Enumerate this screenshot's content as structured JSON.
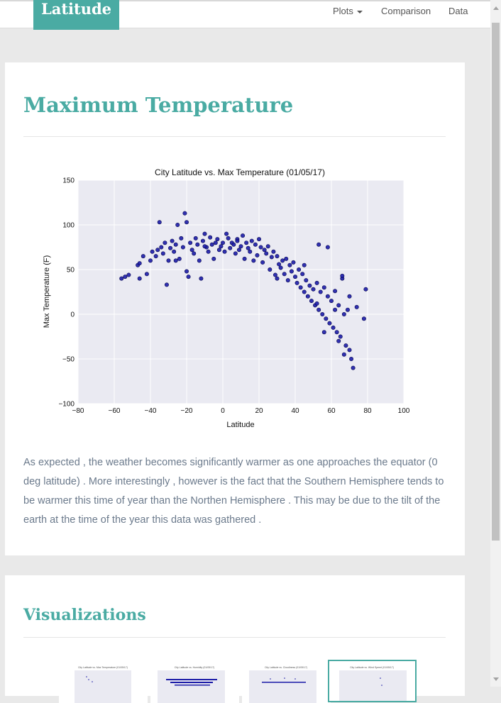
{
  "nav": {
    "brand": "Latitude",
    "items": [
      {
        "label": "Plots",
        "has_caret": true
      },
      {
        "label": "Comparison",
        "has_caret": false
      },
      {
        "label": "Data",
        "has_caret": false
      }
    ]
  },
  "main": {
    "title": "Maximum Temperature",
    "description": "As expected , the weather becomes significantly warmer as one approaches the equator (0 deg latitude) . More interestingly , however is the fact that the Southern Hemisphere tends to be warmer this time of year than the Northen Hemisphere . This may be due to the tilt of the earth at the time of the year this data was gathered ."
  },
  "visualizations": {
    "title": "Visualizations",
    "thumbnails": [
      {
        "name": "max-temperature",
        "active": false
      },
      {
        "name": "humidity",
        "active": false
      },
      {
        "name": "cloudiness",
        "active": false
      },
      {
        "name": "wind-speed",
        "active": true
      }
    ]
  },
  "colors": {
    "accent": "#4aaba3",
    "point": "#1c1ca8",
    "plot_bg": "#eaeaf2"
  },
  "chart_data": {
    "type": "scatter",
    "title": "City Latitude vs. Max Temperature (01/05/17)",
    "xlabel": "Latitude",
    "ylabel": "Max Temperature (F)",
    "xlim": [
      -80,
      100
    ],
    "ylim": [
      -100,
      150
    ],
    "xticks": [
      -80,
      -60,
      -40,
      -20,
      0,
      20,
      40,
      60,
      80,
      100
    ],
    "yticks": [
      -100,
      -50,
      0,
      50,
      100,
      150
    ],
    "grid": true,
    "points": [
      [
        -56,
        40
      ],
      [
        -54,
        42
      ],
      [
        -52,
        44
      ],
      [
        -47,
        55
      ],
      [
        -46,
        57
      ],
      [
        -46,
        40
      ],
      [
        -44,
        65
      ],
      [
        -42,
        45
      ],
      [
        -40,
        60
      ],
      [
        -39,
        70
      ],
      [
        -37,
        65
      ],
      [
        -36,
        72
      ],
      [
        -35,
        103
      ],
      [
        -34,
        75
      ],
      [
        -33,
        68
      ],
      [
        -32,
        80
      ],
      [
        -31,
        33
      ],
      [
        -30,
        60
      ],
      [
        -29,
        74
      ],
      [
        -28,
        82
      ],
      [
        -27,
        70
      ],
      [
        -26,
        78
      ],
      [
        -25,
        100
      ],
      [
        -24,
        62
      ],
      [
        -23,
        85
      ],
      [
        -22,
        75
      ],
      [
        -21,
        113
      ],
      [
        -20,
        103
      ],
      [
        -20,
        48
      ],
      [
        -19,
        42
      ],
      [
        -18,
        80
      ],
      [
        -17,
        72
      ],
      [
        -16,
        68
      ],
      [
        -15,
        85
      ],
      [
        -14,
        78
      ],
      [
        -13,
        60
      ],
      [
        -12,
        40
      ],
      [
        -11,
        82
      ],
      [
        -10,
        90
      ],
      [
        -9,
        75
      ],
      [
        -8,
        70
      ],
      [
        -7,
        86
      ],
      [
        -6,
        78
      ],
      [
        -5,
        62
      ],
      [
        -4,
        80
      ],
      [
        -3,
        84
      ],
      [
        -2,
        72
      ],
      [
        -1,
        76
      ],
      [
        0,
        80
      ],
      [
        1,
        70
      ],
      [
        2,
        90
      ],
      [
        3,
        85
      ],
      [
        4,
        74
      ],
      [
        5,
        80
      ],
      [
        6,
        78
      ],
      [
        7,
        68
      ],
      [
        8,
        84
      ],
      [
        9,
        72
      ],
      [
        10,
        76
      ],
      [
        11,
        88
      ],
      [
        12,
        62
      ],
      [
        13,
        80
      ],
      [
        14,
        74
      ],
      [
        15,
        70
      ],
      [
        16,
        82
      ],
      [
        17,
        60
      ],
      [
        18,
        78
      ],
      [
        19,
        66
      ],
      [
        20,
        84
      ],
      [
        21,
        75
      ],
      [
        22,
        58
      ],
      [
        23,
        72
      ],
      [
        24,
        68
      ],
      [
        25,
        76
      ],
      [
        26,
        50
      ],
      [
        27,
        64
      ],
      [
        28,
        70
      ],
      [
        29,
        44
      ],
      [
        30,
        40
      ],
      [
        31,
        56
      ],
      [
        32,
        52
      ],
      [
        33,
        60
      ],
      [
        34,
        45
      ],
      [
        35,
        62
      ],
      [
        36,
        38
      ],
      [
        37,
        55
      ],
      [
        38,
        48
      ],
      [
        39,
        58
      ],
      [
        40,
        42
      ],
      [
        41,
        35
      ],
      [
        42,
        50
      ],
      [
        43,
        30
      ],
      [
        44,
        45
      ],
      [
        45,
        25
      ],
      [
        46,
        38
      ],
      [
        47,
        20
      ],
      [
        48,
        32
      ],
      [
        49,
        15
      ],
      [
        50,
        28
      ],
      [
        51,
        10
      ],
      [
        52,
        35
      ],
      [
        53,
        5
      ],
      [
        54,
        25
      ],
      [
        55,
        0
      ],
      [
        56,
        30
      ],
      [
        57,
        -5
      ],
      [
        58,
        20
      ],
      [
        59,
        -10
      ],
      [
        60,
        15
      ],
      [
        61,
        -15
      ],
      [
        62,
        5
      ],
      [
        63,
        -20
      ],
      [
        64,
        10
      ],
      [
        65,
        -25
      ],
      [
        66,
        40
      ],
      [
        67,
        0
      ],
      [
        68,
        -35
      ],
      [
        69,
        5
      ],
      [
        70,
        -40
      ],
      [
        71,
        -50
      ],
      [
        72,
        -60
      ],
      [
        74,
        8
      ],
      [
        78,
        -5
      ],
      [
        79,
        28
      ],
      [
        53,
        78
      ],
      [
        58,
        75
      ],
      [
        62,
        26
      ],
      [
        66,
        43
      ],
      [
        -26,
        60
      ],
      [
        -10,
        76
      ],
      [
        8,
        82
      ],
      [
        30,
        65
      ],
      [
        45,
        55
      ],
      [
        52,
        12
      ],
      [
        64,
        -30
      ],
      [
        70,
        20
      ],
      [
        56,
        -20
      ],
      [
        67,
        -45
      ]
    ]
  }
}
